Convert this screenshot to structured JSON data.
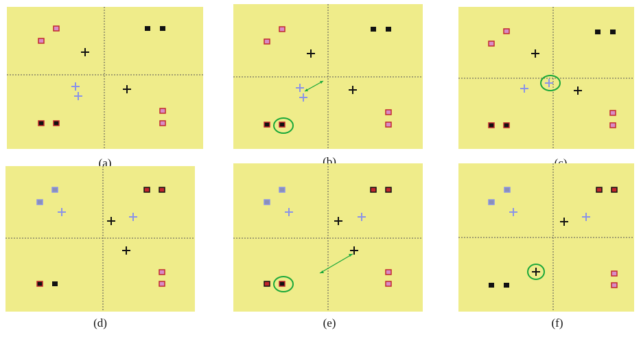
{
  "figure": {
    "panels": [
      {
        "id": "a",
        "label": "(a)"
      },
      {
        "id": "b",
        "label": "(b)"
      },
      {
        "id": "c",
        "label": "(c)"
      },
      {
        "id": "d",
        "label": "(d)"
      },
      {
        "id": "e",
        "label": "(e)"
      },
      {
        "id": "f",
        "label": "(f)"
      }
    ]
  },
  "colors": {
    "background": "#efec8a",
    "axis": "#555555",
    "black_marker": "#111111",
    "red_edge": "#c0262d",
    "pink_fill": "#d98bc7",
    "lavender": "#8a93e8",
    "slate_fill": "#8a8fb8",
    "highlight": "#1aa83a"
  }
}
